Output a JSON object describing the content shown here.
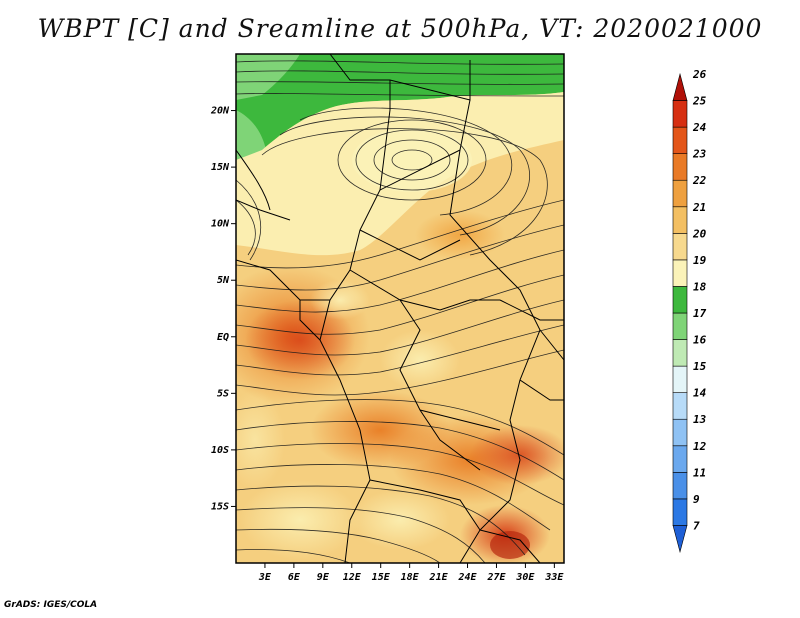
{
  "title": "WBPT [C] and Sreamline at 500hPa, VT: 2020021000",
  "credit": "GrADS: IGES/COLA",
  "map": {
    "lat_labels": [
      "20N",
      "15N",
      "10N",
      "5N",
      "EQ",
      "5S",
      "10S",
      "15S"
    ],
    "lat_values": [
      20,
      15,
      10,
      5,
      0,
      -5,
      -10,
      -15
    ],
    "lon_labels": [
      "3E",
      "6E",
      "9E",
      "12E",
      "15E",
      "18E",
      "21E",
      "24E",
      "27E",
      "30E",
      "33E"
    ],
    "lon_values": [
      3,
      6,
      9,
      12,
      15,
      18,
      21,
      24,
      27,
      30,
      33
    ],
    "lon_range": [
      0,
      34
    ],
    "lat_range": [
      -20,
      25
    ]
  },
  "colorbar": {
    "labels": [
      "7",
      "9",
      "11",
      "12",
      "13",
      "14",
      "15",
      "16",
      "17",
      "18",
      "19",
      "20",
      "21",
      "22",
      "23",
      "24",
      "25",
      "26"
    ],
    "colors": [
      "#1e5fd6",
      "#2b78e4",
      "#4a90e8",
      "#6aa8ee",
      "#8fc2f4",
      "#b7dbf8",
      "#e4f5f8",
      "#bfeab4",
      "#7fd477",
      "#3db83d",
      "#fbf3b9",
      "#f7d98e",
      "#f3bf62",
      "#eea03f",
      "#e97a26",
      "#e3561a",
      "#d62f12",
      "#b01008"
    ]
  }
}
